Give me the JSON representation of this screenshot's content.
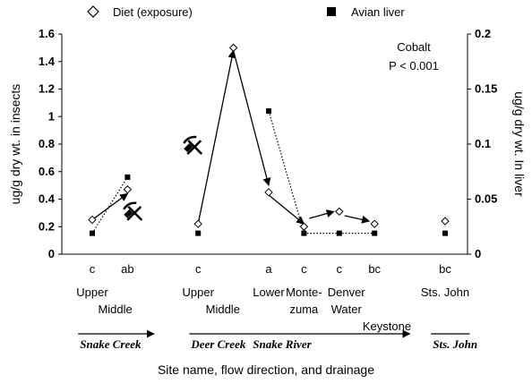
{
  "chart_data": {
    "type": "scatter",
    "legend": {
      "placement": "top",
      "entries": [
        {
          "name": "Diet (exposure)",
          "marker": "open-diamond"
        },
        {
          "name": "Avian liver",
          "marker": "filled-square"
        }
      ]
    },
    "annotation": {
      "element": "Cobalt",
      "pvalue": "P < 0.001"
    },
    "ylabel_left": "ug/g dry wt. in insects",
    "ylabel_right": "ug/g dry wt.  In liver",
    "xlabel": "Site name, flow direction, and drainage",
    "ylim_left": [
      0,
      1.6
    ],
    "ylim_right": [
      0,
      0.2
    ],
    "yticks_left": [
      "0",
      "0.2",
      "0.4",
      "0.6",
      "0.8",
      "1",
      "1.2",
      "1.4",
      "1.6"
    ],
    "yticks_right": [
      "0",
      "0.05",
      "0.1",
      "0.15",
      "0.2"
    ],
    "grid": false,
    "x_positions": [
      1,
      2,
      4,
      5,
      6,
      7,
      8,
      9,
      11
    ],
    "significance_letters": [
      {
        "x": 1,
        "text": "c"
      },
      {
        "x": 2,
        "text": "ab"
      },
      {
        "x": 4,
        "text": "c"
      },
      {
        "x": 6,
        "text": "a"
      },
      {
        "x": 7,
        "text": "c"
      },
      {
        "x": 8,
        "text": "c"
      },
      {
        "x": 9,
        "text": "bc"
      },
      {
        "x": 11,
        "text": "bc"
      }
    ],
    "series": [
      {
        "name": "Diet (exposure)",
        "axis": "left",
        "marker": "open-diamond",
        "points": [
          {
            "x": 1,
            "y": 0.25
          },
          {
            "x": 2,
            "y": 0.47
          },
          {
            "x": 4,
            "y": 0.22
          },
          {
            "x": 5,
            "y": 1.5
          },
          {
            "x": 6,
            "y": 0.45
          },
          {
            "x": 7,
            "y": 0.2
          },
          {
            "x": 8,
            "y": 0.31
          },
          {
            "x": 9,
            "y": 0.22
          },
          {
            "x": 11,
            "y": 0.24
          }
        ]
      },
      {
        "name": "Avian liver",
        "axis": "right",
        "marker": "filled-square",
        "points": [
          {
            "x": 1,
            "y": 0.019
          },
          {
            "x": 2,
            "y": 0.07
          },
          {
            "x": 4,
            "y": 0.019
          },
          {
            "x": 6,
            "y": 0.13
          },
          {
            "x": 7,
            "y": 0.019
          },
          {
            "x": 8,
            "y": 0.019
          },
          {
            "x": 9,
            "y": 0.019
          },
          {
            "x": 11,
            "y": 0.019
          }
        ]
      }
    ],
    "flow_arrows": [
      {
        "from": [
          1,
          0.25
        ],
        "to": [
          2,
          0.44
        ],
        "style": "solid"
      },
      {
        "from": [
          4,
          0.22
        ],
        "to": [
          5,
          1.48
        ],
        "style": "solid"
      },
      {
        "from": [
          5,
          1.48
        ],
        "to": [
          6,
          0.5
        ],
        "style": "solid"
      },
      {
        "from": [
          6,
          0.43
        ],
        "to": [
          7,
          0.22
        ],
        "style": "solid"
      },
      {
        "from": [
          7.15,
          0.26
        ],
        "to": [
          7.85,
          0.31
        ],
        "style": "solid"
      },
      {
        "from": [
          8.15,
          0.28
        ],
        "to": [
          8.85,
          0.24
        ],
        "style": "solid"
      }
    ],
    "liver_connectors": [
      {
        "from": [
          1,
          0.019
        ],
        "to": [
          2,
          0.07
        ],
        "style": "dotted"
      },
      {
        "from": [
          6,
          0.13
        ],
        "to": [
          7,
          0.019
        ],
        "style": "dotted"
      },
      {
        "from": [
          7,
          0.019
        ],
        "to": [
          8,
          0.019
        ],
        "style": "dotted"
      },
      {
        "from": [
          8,
          0.019
        ],
        "to": [
          9,
          0.019
        ],
        "style": "dotted"
      }
    ],
    "mine_icons": [
      {
        "x": 2.2,
        "y": 0.3
      },
      {
        "x": 3.9,
        "y": 0.78
      }
    ],
    "site_labels": [
      {
        "x": 1,
        "row": 1,
        "text": "Upper"
      },
      {
        "x": 1.65,
        "row": 2,
        "text": "Middle"
      },
      {
        "x": 4,
        "row": 1,
        "text": "Upper"
      },
      {
        "x": 4.7,
        "row": 2,
        "text": "Middle"
      },
      {
        "x": 6,
        "row": 1,
        "text": "Lower"
      },
      {
        "x": 7,
        "row": 1,
        "text": "Monte-"
      },
      {
        "x": 7,
        "row": 2,
        "text": "zuma"
      },
      {
        "x": 8.2,
        "row": 1,
        "text": "Denver"
      },
      {
        "x": 8.2,
        "row": 2,
        "text": "Water"
      },
      {
        "x": 9.35,
        "row": 3,
        "text": "Keystone"
      },
      {
        "x": 11,
        "row": 1,
        "text": "Sts. John"
      }
    ],
    "drainages": [
      {
        "name": "Snake Creek",
        "from": 0.6,
        "to": 2.75,
        "arrow": true
      },
      {
        "name": "Deer Creek",
        "from": 3.75,
        "to": 5.5,
        "arrow": false
      },
      {
        "name": "Snake River",
        "from": 5.5,
        "to": 10.0,
        "arrow": true
      },
      {
        "name": "Sts. John",
        "from": 10.6,
        "to": 11.7,
        "arrow": false
      }
    ]
  }
}
